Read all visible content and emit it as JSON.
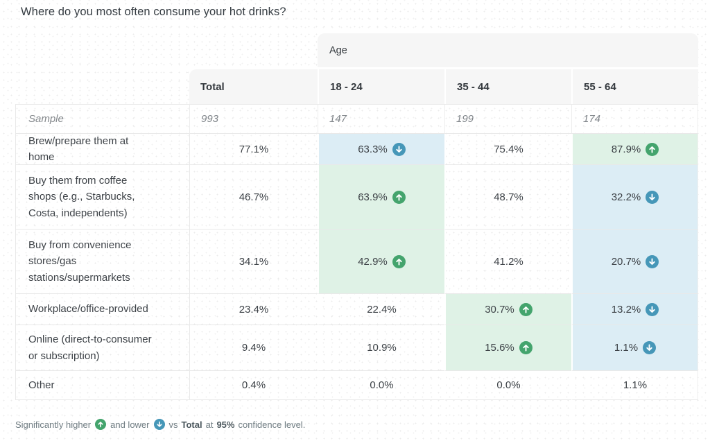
{
  "title": "Where do you most often consume your hot drinks?",
  "colors": {
    "higher_accent": "#44a46d",
    "lower_accent": "#4697b8",
    "higher_cell_bg": "#dff2e6",
    "lower_cell_bg": "#dcedf5",
    "header_bg": "#f6f6f6",
    "border": "#e9e9e9"
  },
  "chart_data": {
    "type": "table",
    "title": "Where do you most often consume your hot drinks?",
    "group_header": "Age",
    "columns": [
      "Total",
      "18 - 24",
      "35 - 44",
      "55 - 64"
    ],
    "sample_row": {
      "label": "Sample",
      "values": [
        "993",
        "147",
        "199",
        "174"
      ]
    },
    "rows": [
      {
        "label": "Brew/prepare them at home",
        "values": [
          77.1,
          63.3,
          75.4,
          87.9
        ],
        "sig": [
          null,
          "down",
          null,
          "up"
        ]
      },
      {
        "label": "Buy them from coffee shops (e.g., Starbucks, Costa, independents)",
        "values": [
          46.7,
          63.9,
          48.7,
          32.2
        ],
        "sig": [
          null,
          "up",
          null,
          "down"
        ]
      },
      {
        "label": "Buy from convenience stores/gas stations/supermarkets",
        "values": [
          34.1,
          42.9,
          41.2,
          20.7
        ],
        "sig": [
          null,
          "up",
          null,
          "down"
        ]
      },
      {
        "label": "Workplace/office-provided",
        "values": [
          23.4,
          22.4,
          30.7,
          13.2
        ],
        "sig": [
          null,
          null,
          "up",
          "down"
        ]
      },
      {
        "label": "Online (direct-to-consumer or subscription)",
        "values": [
          9.4,
          10.9,
          15.6,
          1.1
        ],
        "sig": [
          null,
          null,
          "up",
          "down"
        ]
      },
      {
        "label": "Other",
        "values": [
          0.4,
          0.0,
          0.0,
          1.1
        ],
        "sig": [
          null,
          null,
          null,
          null
        ]
      }
    ],
    "footnote": "Significantly higher ↑ and lower ↓ vs Total at 95% confidence level."
  },
  "footnote": {
    "part1": "Significantly higher",
    "higher_icon": "arrow-up-circle-icon",
    "part2": "and lower",
    "lower_icon": "arrow-down-circle-icon",
    "part3": "vs",
    "bold1": "Total",
    "part4": "at",
    "bold2": "95%",
    "part5": "confidence level."
  }
}
